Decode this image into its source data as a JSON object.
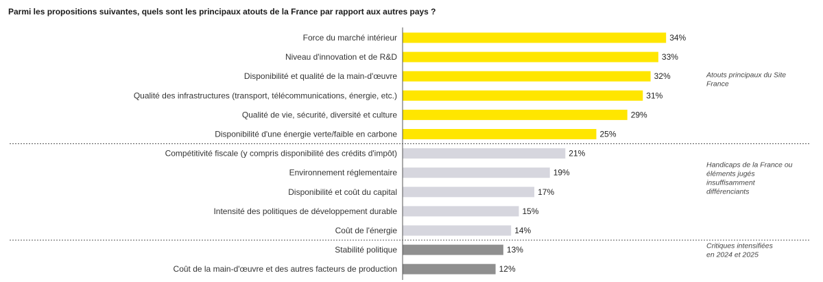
{
  "chart_data": {
    "type": "bar",
    "orientation": "horizontal",
    "title": "Parmi les propositions suivantes, quels sont les principaux atouts de la France par rapport aux autres pays ?",
    "value_suffix": "%",
    "xlim": [
      0,
      40
    ],
    "grid": false,
    "categories": [
      "Force du marché intérieur",
      "Niveau d'innovation et de R&D",
      "Disponibilité et qualité de la main-d'œuvre",
      "Qualité des infrastructures (transport, télécommunications, énergie, etc.)",
      "Qualité de vie, sécurité, diversité et culture",
      "Disponibilité d'une énergie verte/faible en carbone",
      "Compétitivité fiscale (y compris disponibilité des crédits d'impôt)",
      "Environnement réglementaire",
      "Disponibilité et coût du capital",
      "Intensité des politiques de développement durable",
      "Coût de l'énergie",
      "Stabilité politique",
      "Coût de la main-d'œuvre et des autres facteurs de production"
    ],
    "values": [
      34,
      33,
      32,
      31,
      29,
      25,
      21,
      19,
      17,
      15,
      14,
      13,
      12
    ],
    "groups": [
      {
        "label_lines": [
          "Atouts principaux du Site",
          "France"
        ],
        "color": "#ffe600",
        "start": 0,
        "end": 5
      },
      {
        "label_lines": [
          "Handicaps de la France ou",
          "éléments jugés",
          "insuffisamment",
          "différenciants"
        ],
        "color": "#d6d6de",
        "start": 6,
        "end": 10
      },
      {
        "label_lines": [
          "Critiques intensifiées",
          "en 2024 et 2025"
        ],
        "color": "#8f8f8f",
        "start": 11,
        "end": 12
      }
    ]
  }
}
